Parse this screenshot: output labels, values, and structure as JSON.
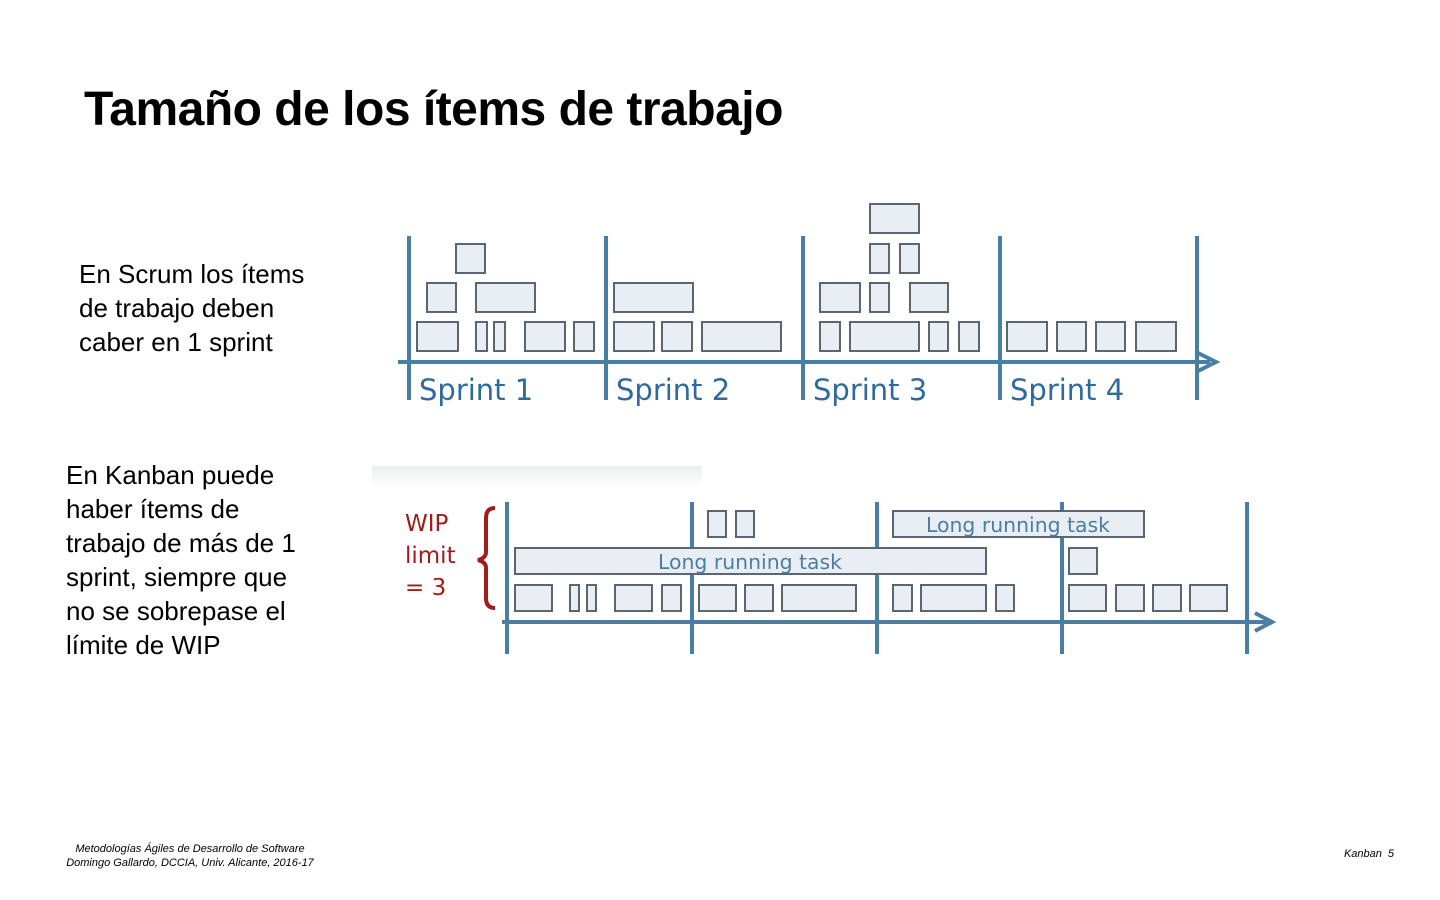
{
  "title": "Tamaño de los ítems de trabajo",
  "scrum_text": [
    "En Scrum los ítems",
    "de trabajo deben",
    "caber en 1 sprint"
  ],
  "kanban_text": [
    "En Kanban puede",
    "haber ítems de",
    "trabajo de más de 1",
    "sprint, siempre que",
    "no se sobrepase el",
    "límite de WIP"
  ],
  "scrum_diagram": {
    "sprint_labels": [
      "Sprint 1",
      "Sprint 2",
      "Sprint 3",
      "Sprint 4"
    ]
  },
  "kanban_diagram": {
    "wip_label": [
      "WIP",
      "limit",
      "= 3"
    ],
    "long_tasks": [
      "Long running task",
      "Long running task"
    ]
  },
  "footer": {
    "course": "Metodologías Ágiles de Desarrollo de Software",
    "author": "Domingo Gallardo, DCCIA, Univ. Alicante, 2016-17",
    "section": "Kanban",
    "page": "5"
  },
  "colors": {
    "axis": "#4a7fa5",
    "box_stroke": "#5a6672",
    "box_fill": "#e9eef4",
    "sprint_text": "#2f6a9d",
    "wip_text": "#a31c1c"
  }
}
